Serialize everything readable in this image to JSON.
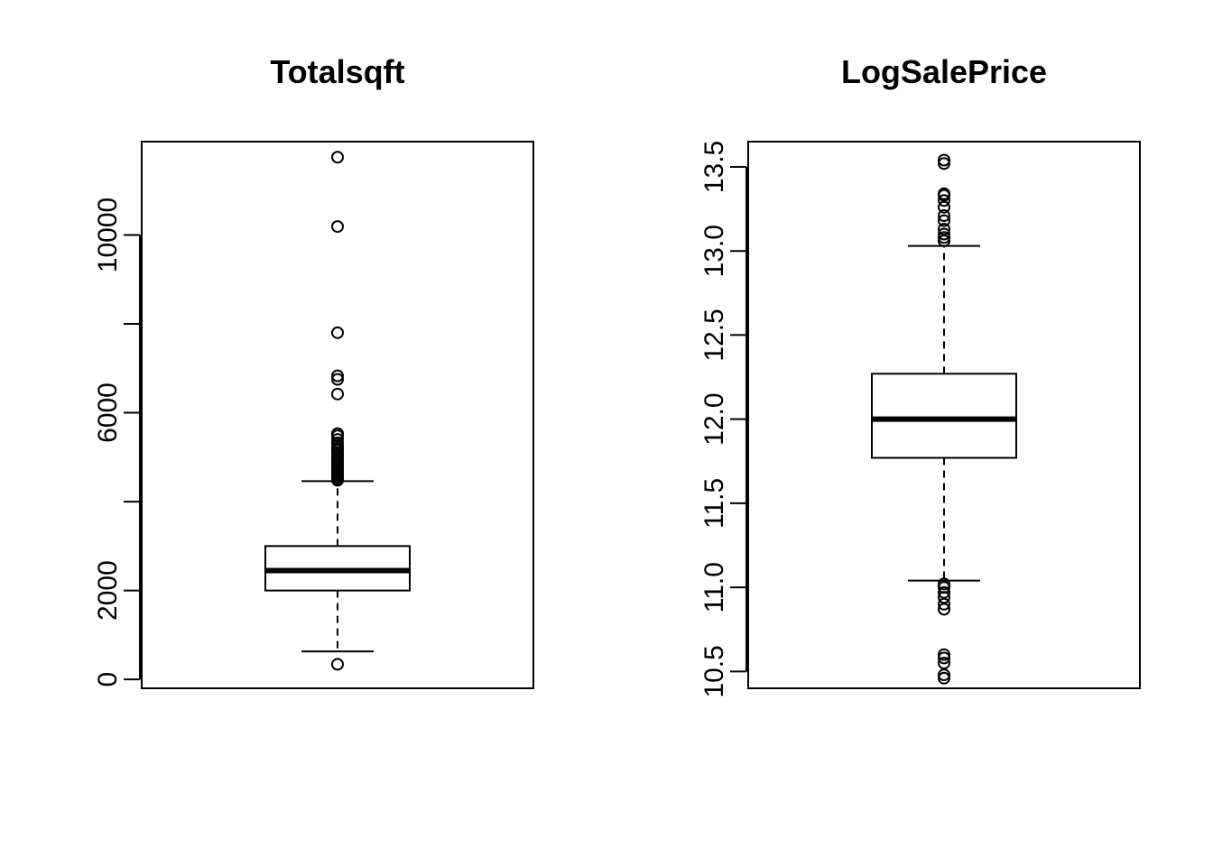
{
  "chart_data": [
    {
      "type": "boxplot",
      "title": "Totalsqft",
      "xlabel": "",
      "ylabel": "",
      "ylim": [
        -200,
        12100
      ],
      "yticks": [
        0,
        2000,
        4000,
        6000,
        8000,
        10000
      ],
      "ytick_labels": [
        "0",
        "2000",
        "",
        "6000",
        "",
        "10000"
      ],
      "grid": false,
      "box": {
        "lower_whisker": 630,
        "q1": 2000,
        "median": 2450,
        "q3": 3000,
        "upper_whisker": 4460
      },
      "outliers": [
        340,
        4480,
        4520,
        4560,
        4600,
        4640,
        4680,
        4720,
        4760,
        4800,
        4850,
        4900,
        4950,
        5000,
        5050,
        5100,
        5150,
        5200,
        5250,
        5320,
        5400,
        5480,
        5530,
        6420,
        6750,
        6830,
        7800,
        10190,
        11750
      ]
    },
    {
      "type": "boxplot",
      "title": "LogSalePrice",
      "xlabel": "",
      "ylabel": "",
      "ylim": [
        10.4,
        13.65
      ],
      "yticks": [
        10.5,
        11.0,
        11.5,
        12.0,
        12.5,
        13.0,
        13.5
      ],
      "ytick_labels": [
        "10.5",
        "11.0",
        "11.5",
        "12.0",
        "12.5",
        "13.0",
        "13.5"
      ],
      "grid": false,
      "box": {
        "lower_whisker": 11.04,
        "q1": 11.77,
        "median": 12.0,
        "q3": 12.27,
        "upper_whisker": 13.03
      },
      "outliers": [
        10.46,
        10.48,
        10.55,
        10.58,
        10.6,
        10.87,
        10.9,
        10.94,
        10.97,
        11.0,
        11.02,
        13.06,
        13.08,
        13.1,
        13.13,
        13.18,
        13.21,
        13.26,
        13.3,
        13.33,
        13.34,
        13.52,
        13.54
      ]
    }
  ]
}
